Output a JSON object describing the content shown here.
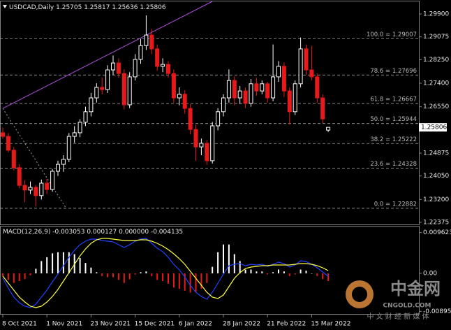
{
  "chart_data": {
    "type": "candlestick",
    "title": "USDCAD,Daily",
    "up_color": "#ffffff",
    "down_color": "#e8191a",
    "categories": [
      "8 Oct 2021",
      null,
      null,
      null,
      null,
      null,
      null,
      null,
      "1 Nov 2021",
      null,
      null,
      null,
      null,
      null,
      null,
      null,
      "23 Nov 2021",
      null,
      null,
      null,
      null,
      null,
      null,
      null,
      "15 Dec 2021",
      null,
      null,
      null,
      null,
      null,
      null,
      null,
      "6 Jan 2022",
      null,
      null,
      null,
      null,
      null,
      null,
      null,
      "28 Jan 2022",
      null,
      null,
      null,
      null,
      null,
      null,
      null,
      "21 Feb 2022",
      null,
      null,
      null,
      null,
      null,
      null,
      null,
      "15 Mar 2022",
      null,
      null,
      null
    ],
    "candles": [
      [
        1.2561,
        1.258,
        1.254,
        1.2548
      ],
      [
        1.2548,
        1.256,
        1.249,
        1.2498
      ],
      [
        1.2498,
        1.251,
        1.2425,
        1.2435
      ],
      [
        1.2435,
        1.2448,
        1.236,
        1.2371
      ],
      [
        1.2371,
        1.239,
        1.231,
        1.2354
      ],
      [
        1.2354,
        1.2385,
        1.234,
        1.2364
      ],
      [
        1.2364,
        1.2372,
        1.2295,
        1.2334
      ],
      [
        1.2334,
        1.2392,
        1.232,
        1.2379
      ],
      [
        1.2379,
        1.2395,
        1.234,
        1.2356
      ],
      [
        1.2356,
        1.243,
        1.2348,
        1.2422
      ],
      [
        1.2422,
        1.246,
        1.2405,
        1.2447
      ],
      [
        1.2447,
        1.248,
        1.242,
        1.2465
      ],
      [
        1.2465,
        1.256,
        1.2455,
        1.2548
      ],
      [
        1.2548,
        1.2585,
        1.2525,
        1.2561
      ],
      [
        1.2561,
        1.261,
        1.2545,
        1.2599
      ],
      [
        1.2599,
        1.2655,
        1.2585,
        1.2637
      ],
      [
        1.2637,
        1.2705,
        1.262,
        1.2687
      ],
      [
        1.2687,
        1.274,
        1.267,
        1.2725
      ],
      [
        1.2725,
        1.276,
        1.27,
        1.2717
      ],
      [
        1.2717,
        1.2805,
        1.2705,
        1.2788
      ],
      [
        1.2788,
        1.284,
        1.277,
        1.2813
      ],
      [
        1.2813,
        1.283,
        1.276,
        1.2775
      ],
      [
        1.2775,
        1.279,
        1.2645,
        1.2662
      ],
      [
        1.2662,
        1.278,
        1.265,
        1.2763
      ],
      [
        1.2763,
        1.2845,
        1.275,
        1.2826
      ],
      [
        1.2826,
        1.29,
        1.281,
        1.2876
      ],
      [
        1.2876,
        1.2985,
        1.286,
        1.2914
      ],
      [
        1.2914,
        1.2935,
        1.2845,
        1.2864
      ],
      [
        1.2864,
        1.288,
        1.2785,
        1.2801
      ],
      [
        1.2801,
        1.283,
        1.278,
        1.2808
      ],
      [
        1.2808,
        1.282,
        1.276,
        1.2775
      ],
      [
        1.2775,
        1.279,
        1.267,
        1.2687
      ],
      [
        1.2687,
        1.2725,
        1.266,
        1.27
      ],
      [
        1.27,
        1.2715,
        1.263,
        1.2649
      ],
      [
        1.2649,
        1.2665,
        1.2555,
        1.2573
      ],
      [
        1.2573,
        1.259,
        1.246,
        1.251
      ],
      [
        1.251,
        1.254,
        1.248,
        1.2523
      ],
      [
        1.2523,
        1.2535,
        1.2445,
        1.246
      ],
      [
        1.246,
        1.26,
        1.245,
        1.2586
      ],
      [
        1.2586,
        1.265,
        1.257,
        1.2637
      ],
      [
        1.2637,
        1.27,
        1.262,
        1.2687
      ],
      [
        1.2687,
        1.279,
        1.267,
        1.275
      ],
      [
        1.275,
        1.2765,
        1.266,
        1.2687
      ],
      [
        1.2687,
        1.273,
        1.2665,
        1.2712
      ],
      [
        1.2712,
        1.2725,
        1.265,
        1.2667
      ],
      [
        1.2667,
        1.2755,
        1.2655,
        1.2738
      ],
      [
        1.2738,
        1.276,
        1.2695,
        1.2712
      ],
      [
        1.2712,
        1.275,
        1.27,
        1.2738
      ],
      [
        1.2738,
        1.2745,
        1.267,
        1.2687
      ],
      [
        1.2687,
        1.288,
        1.2675,
        1.2763
      ],
      [
        1.2763,
        1.282,
        1.2745,
        1.2801
      ],
      [
        1.2801,
        1.2815,
        1.269,
        1.2712
      ],
      [
        1.2712,
        1.2725,
        1.259,
        1.2637
      ],
      [
        1.2637,
        1.275,
        1.2625,
        1.2738
      ],
      [
        1.2738,
        1.2905,
        1.2725,
        1.2864
      ],
      [
        1.2864,
        1.288,
        1.277,
        1.2788
      ],
      [
        1.2788,
        1.2875,
        1.275,
        1.2763
      ],
      [
        1.2763,
        1.2775,
        1.267,
        1.2687
      ],
      [
        1.2687,
        1.27,
        1.2595,
        1.2611
      ],
      [
        1.25705,
        1.25817,
        1.25636,
        1.25806
      ]
    ],
    "ylim": [
      1.22325,
      1.30355
    ],
    "yticks": [
      {
        "value": 1.299,
        "label": "1.29900"
      },
      1.29075,
      {
        "value": 1.2825,
        "label": "1.28250"
      },
      {
        "value": 1.274,
        "label": "1.27400"
      },
      {
        "value": 1.2655,
        "label": "1.26550"
      },
      1.24875,
      {
        "value": 1.2405,
        "label": "1.24050"
      },
      {
        "value": 1.232,
        "label": "1.23200"
      },
      1.22375
    ],
    "fib_levels": [
      {
        "label": "100.0 = 1.29007",
        "value": 1.29007
      },
      {
        "label": "78.6 = 1.27696",
        "value": 1.27696
      },
      {
        "label": "61.8 = 1.26667",
        "value": 1.26667
      },
      {
        "label": "50.0 = 1.25944",
        "value": 1.25944
      },
      {
        "label": "38.2 = 1.25222",
        "value": 1.25222
      },
      {
        "label": "23.6 = 1.24328",
        "value": 1.24328
      },
      {
        "label": "0.0 = 1.22882",
        "value": 1.22882
      }
    ],
    "fib_anchor": {
      "color": "#9a9a9a",
      "points": [
        [
          0,
          1.2649
        ],
        [
          11.5,
          1.2288
        ]
      ]
    },
    "trendline": {
      "color": "#b04ee0",
      "points": [
        [
          0,
          1.2649
        ],
        [
          38,
          1.30355
        ]
      ]
    },
    "macd": {
      "title": "MACD(12,26,9)",
      "header_values": [
        -0.003053,
        0.000127,
        {
          "value": 0,
          "label": "0.000000"
        },
        -0.004135
      ],
      "y2lim": [
        -0.009405,
        0.01089
      ],
      "y2ticks": [
        0.009623,
        {
          "value": 0,
          "label": "0.00"
        },
        -0.008955
      ],
      "hist_up_color": "#ffffff",
      "hist_down_color": "#e8191a",
      "histogram": [
        -0.000636,
        -0.001544,
        -0.00227,
        -0.001816,
        -0.001362,
        -0.000454,
        0.00109,
        0.002906,
        0.003814,
        0.004722,
        0.004994,
        0.004994,
        0.004994,
        0.00454,
        0.003632,
        0.002452,
        0.001362,
        0.000272,
        -0.000636,
        -0.000908,
        -0.000908,
        -0.001544,
        -0.00227,
        -0.001362,
        -0.000272,
        0.000272,
        0.000454,
        -0.000636,
        -0.001544,
        -0.001816,
        -0.002452,
        -0.00336,
        -0.003632,
        -0.004086,
        -0.00454,
        -0.00454,
        -0.003632,
        -0.00227,
        0.001544,
        0.004994,
        0.00681,
        0.00681,
        0.00454,
        0.002906,
        0.000908,
        0.000908,
        0.000454,
        0.000454,
        -0.000272,
        0.000272,
        0.000908,
        0.000454,
        -0.000636,
        -0.000272,
        0.000908,
        0.000636,
        0,
        -0.000636,
        -0.001362,
        -0.001816
      ],
      "main": {
        "color": "#2040ff",
        "values": [
          -0.001155,
          -0.003465,
          -0.00561,
          -0.00693,
          -0.007755,
          -0.008085,
          -0.00726,
          -0.00561,
          -0.00396,
          -0.00198,
          -0.000165,
          0.001815,
          0.003795,
          0.005445,
          0.006765,
          0.00759,
          0.008085,
          0.008085,
          0.007755,
          0.00759,
          0.007425,
          0.006765,
          0.006105,
          0.006765,
          0.00759,
          0.008085,
          0.00825,
          0.007095,
          0.00594,
          0.005115,
          0.003795,
          0.002145,
          0.000825,
          -0.000825,
          -0.002805,
          -0.004455,
          -0.005445,
          -0.006105,
          -0.004455,
          -0.00231,
          -0.000165,
          0.001815,
          0.002145,
          0.00231,
          0.001815,
          0.002145,
          0.00198,
          0.002145,
          0.00165,
          0.002145,
          0.00264,
          0.00231,
          0.001485,
          0.00198,
          0.00297,
          0.002805,
          0.002145,
          0.00132,
          0.00033,
          -0.00066
        ]
      },
      "signal": {
        "color": "#ffff40",
        "values": [
          -0.00066,
          -0.00231,
          -0.00396,
          -0.00561,
          -0.006765,
          -0.007755,
          -0.008085,
          -0.007755,
          -0.006765,
          -0.005445,
          -0.003795,
          -0.001815,
          0.000165,
          0.002145,
          0.004125,
          0.005775,
          0.007095,
          0.00792,
          0.00825,
          0.00825,
          0.008085,
          0.00792,
          0.007755,
          0.007755,
          0.007755,
          0.00792,
          0.00792,
          0.00759,
          0.007095,
          0.006435,
          0.00561,
          0.00462,
          0.003465,
          0.002145,
          0.000495,
          -0.001155,
          -0.002805,
          -0.004455,
          -0.00561,
          -0.00594,
          -0.005115,
          -0.003135,
          -0.001155,
          0.000165,
          0.001155,
          0.001485,
          0.00165,
          0.001815,
          0.001815,
          0.00198,
          0.00198,
          0.00198,
          0.00198,
          0.002145,
          0.00231,
          0.00231,
          0.002145,
          0.001815,
          0.00132,
          0.00066
        ]
      }
    },
    "watermark": {
      "brand": "中金网",
      "site": "CNGOLD.COM",
      "slogan": "中 文 财 经 新 媒 体"
    }
  }
}
